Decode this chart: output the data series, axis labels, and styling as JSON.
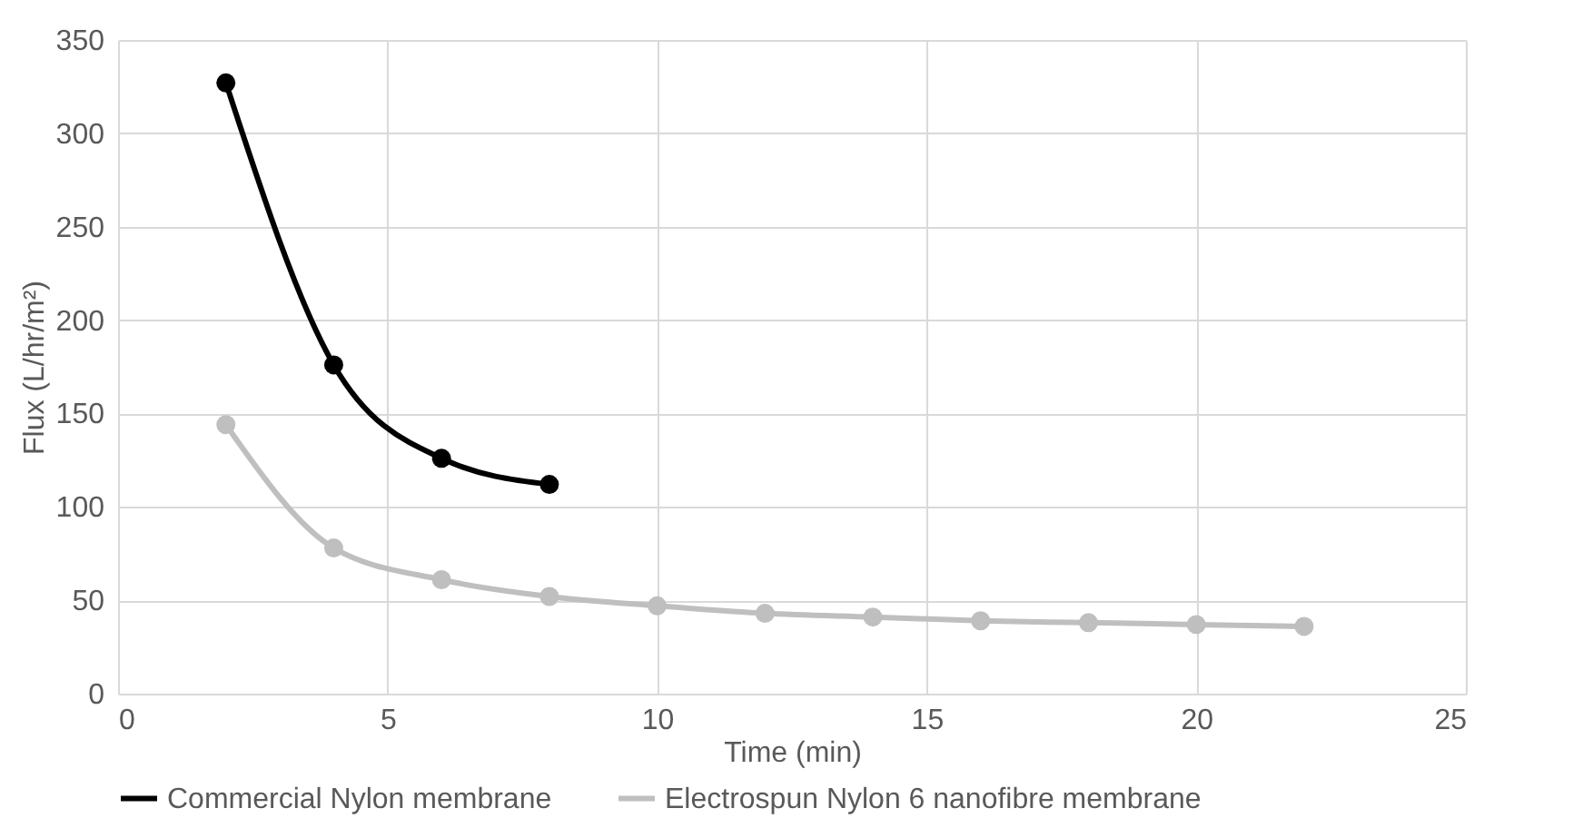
{
  "chart_data": {
    "type": "line",
    "xlabel": "Time (min)",
    "ylabel": "Flux (L/hr/m²)",
    "x": [
      2,
      4,
      6,
      8,
      10,
      12,
      14,
      16,
      18,
      20,
      22
    ],
    "series": [
      {
        "name": "Commercial Nylon membrane",
        "color": "#000000",
        "x": [
          2,
          4,
          6,
          8
        ],
        "values": [
          327,
          176,
          126,
          112
        ]
      },
      {
        "name": "Electrospun Nylon 6 nanofibre membrane",
        "color": "#bfbfbf",
        "values": [
          144,
          78,
          61,
          52,
          47,
          43,
          41,
          39,
          38,
          37,
          36
        ]
      }
    ],
    "xlim": [
      0,
      25
    ],
    "xticks": [
      0,
      5,
      10,
      15,
      20,
      25
    ],
    "ylim": [
      0,
      350
    ],
    "yticks": [
      0,
      50,
      100,
      150,
      200,
      250,
      300,
      350
    ],
    "grid": true,
    "legend": "bottom",
    "marker": "circle",
    "line_style": "solid"
  }
}
